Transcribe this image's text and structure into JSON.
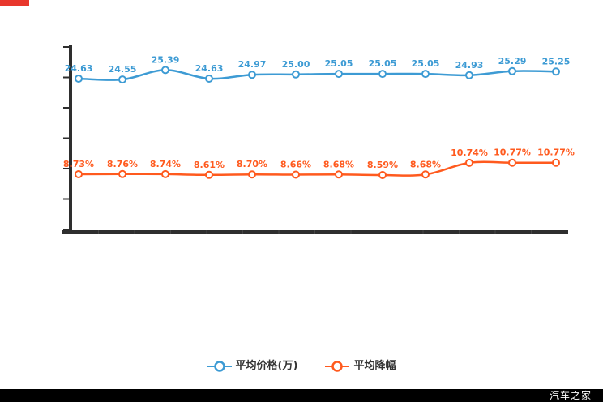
{
  "page": {
    "watermark": "汽车之家"
  },
  "colors": {
    "accent_red": "#e8372c",
    "axis_gray": "#2e2e2e",
    "axis_divider_gray": "#454545",
    "price_blue": "#3d9bd4",
    "discount_orange": "#ff5a1e",
    "legend_text": "#333333",
    "watermark_bg": "#000000",
    "watermark_text": "#ffffff",
    "background": "#ffffff"
  },
  "chart_data": {
    "type": "line",
    "title": "",
    "xlabel": "",
    "ylabel": "",
    "grid": false,
    "x_tick_labels_visible": false,
    "y_tick_labels_visible": false,
    "legend_position": "bottom",
    "marker_style": "ring",
    "series": [
      {
        "name": "平均价格(万)",
        "color": "#3d9bd4",
        "values": [
          24.63,
          24.55,
          25.39,
          24.63,
          24.97,
          25.0,
          25.05,
          25.05,
          25.05,
          24.93,
          25.29,
          25.25
        ],
        "labels": [
          "24.63",
          "24.55",
          "25.39",
          "24.63",
          "24.97",
          "25.00",
          "25.05",
          "25.05",
          "25.05",
          "24.93",
          "25.29",
          "25.25"
        ]
      },
      {
        "name": "平均降幅",
        "color": "#ff5a1e",
        "values": [
          8.73,
          8.76,
          8.74,
          8.61,
          8.7,
          8.66,
          8.68,
          8.59,
          8.68,
          10.74,
          10.77,
          10.77
        ],
        "labels": [
          "8.73%",
          "8.76%",
          "8.74%",
          "8.61%",
          "8.70%",
          "8.66%",
          "8.68%",
          "8.59%",
          "8.68%",
          "10.74%",
          "10.77%",
          "10.77%"
        ]
      }
    ]
  },
  "legend": {
    "items": [
      {
        "label": "平均价格(万)",
        "color": "#3d9bd4"
      },
      {
        "label": "平均降幅",
        "color": "#ff5a1e"
      }
    ]
  }
}
